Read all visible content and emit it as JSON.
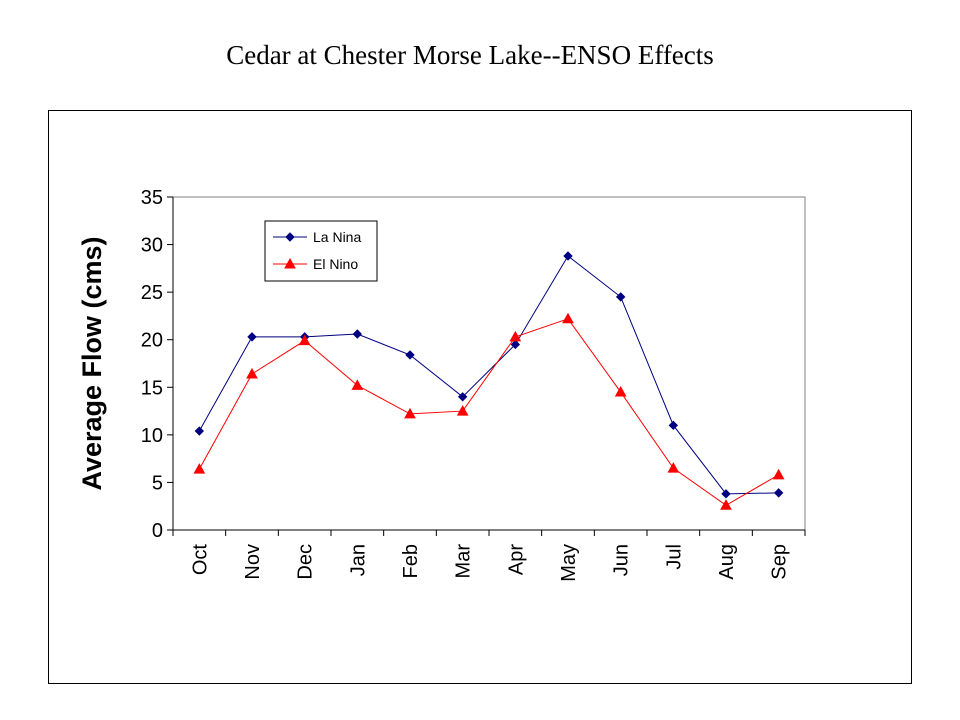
{
  "title": "Cedar at Chester Morse Lake--ENSO Effects",
  "chart_data": {
    "type": "line",
    "title": "Cedar at Chester Morse Lake--ENSO Effects",
    "xlabel": "",
    "ylabel": "Average Flow (cms)",
    "ylim": [
      0,
      35
    ],
    "yticks": [
      0,
      5,
      10,
      15,
      20,
      25,
      30,
      35
    ],
    "categories": [
      "Oct",
      "Nov",
      "Dec",
      "Jan",
      "Feb",
      "Mar",
      "Apr",
      "May",
      "Jun",
      "Jul",
      "Aug",
      "Sep"
    ],
    "grid": false,
    "legend_position": "top-left",
    "series": [
      {
        "name": "La Nina",
        "color": "#000080",
        "marker": "diamond",
        "values": [
          10.4,
          20.3,
          20.3,
          20.6,
          18.4,
          14.0,
          19.5,
          28.8,
          24.5,
          11.0,
          3.8,
          3.9
        ]
      },
      {
        "name": "El Nino",
        "color": "#ff0000",
        "marker": "triangle",
        "values": [
          6.4,
          16.4,
          19.9,
          15.2,
          12.2,
          12.5,
          20.3,
          22.2,
          14.5,
          6.5,
          2.6,
          5.8
        ]
      }
    ]
  }
}
